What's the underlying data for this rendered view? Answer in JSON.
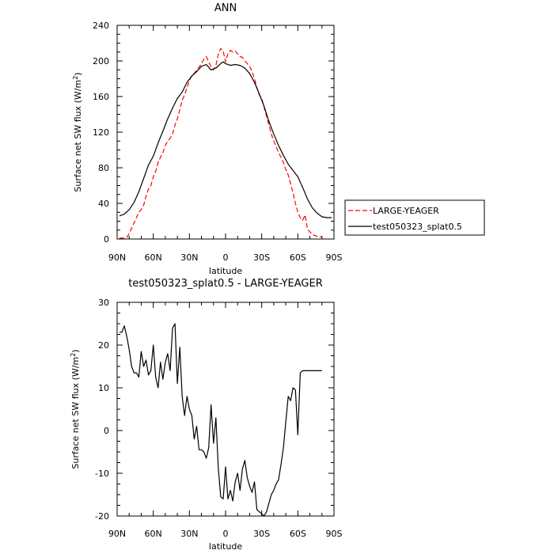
{
  "chart_data": [
    {
      "type": "line",
      "title": "ANN",
      "xlabel": "latitude",
      "ylabel": "Surface net SW flux (W/m",
      "ylabel_sup": "2",
      "ylabel_close": ")",
      "xlim": [
        90,
        -90
      ],
      "ylim": [
        0,
        240
      ],
      "x_ticks": [
        90,
        60,
        30,
        0,
        -30,
        -60,
        -90
      ],
      "x_tick_labels": [
        "90N",
        "60N",
        "30N",
        "0",
        "30S",
        "60S",
        "90S"
      ],
      "y_ticks": [
        0,
        40,
        80,
        120,
        160,
        200,
        240
      ],
      "y_tick_labels": [
        "0",
        "40",
        "80",
        "120",
        "160",
        "200",
        "240"
      ],
      "legend_position": "right",
      "series": [
        {
          "name": "LARGE-YEAGER",
          "color": "#ff0000",
          "style": "dashed",
          "x": [
            88,
            84,
            82,
            80,
            78,
            76,
            74,
            72,
            70,
            68,
            66,
            64,
            62,
            60,
            58,
            56,
            54,
            52,
            50,
            48,
            46,
            44,
            42,
            40,
            38,
            36,
            34,
            32,
            30,
            28,
            26,
            24,
            22,
            20,
            18,
            16,
            14,
            12,
            10,
            8,
            6,
            4,
            2,
            0,
            -2,
            -4,
            -6,
            -8,
            -10,
            -12,
            -14,
            -16,
            -18,
            -20,
            -22,
            -24,
            -26,
            -28,
            -30,
            -32,
            -34,
            -36,
            -38,
            -40,
            -42,
            -44,
            -46,
            -48,
            -50,
            -52,
            -54,
            -56,
            -58,
            -60,
            -62,
            -64,
            -66,
            -68,
            -70,
            -72,
            -74,
            -76,
            -78,
            -80
          ],
          "y": [
            1,
            1,
            2,
            6,
            12,
            18,
            24,
            30,
            33,
            38,
            48,
            56,
            60,
            70,
            76,
            86,
            92,
            97,
            105,
            110,
            113,
            118,
            128,
            135,
            145,
            156,
            162,
            170,
            178,
            184,
            186,
            190,
            193,
            197,
            202,
            205,
            199,
            193,
            190,
            195,
            208,
            214,
            211,
            199,
            208,
            212,
            210,
            211,
            208,
            205,
            204,
            200,
            197,
            194,
            188,
            180,
            170,
            162,
            158,
            148,
            138,
            128,
            118,
            110,
            104,
            97,
            92,
            86,
            78,
            72,
            62,
            52,
            40,
            30,
            24,
            21,
            27,
            11,
            8,
            5,
            4,
            3,
            3,
            2
          ]
        },
        {
          "name": "test050323_splat0.5",
          "color": "#000000",
          "style": "solid",
          "x": [
            88,
            84,
            80,
            76,
            72,
            68,
            64,
            60,
            56,
            52,
            48,
            44,
            40,
            36,
            32,
            28,
            24,
            20,
            16,
            12,
            8,
            4,
            2,
            0,
            -4,
            -8,
            -12,
            -16,
            -20,
            -24,
            -28,
            -32,
            -36,
            -40,
            -44,
            -48,
            -52,
            -56,
            -60,
            -64,
            -68,
            -72,
            -76,
            -80,
            -84,
            -88
          ],
          "y": [
            26,
            28,
            33,
            41,
            53,
            68,
            83,
            93,
            108,
            121,
            135,
            147,
            158,
            165,
            176,
            183,
            188,
            194,
            196,
            190,
            192,
            197,
            199,
            197,
            195,
            196,
            195,
            192,
            186,
            176,
            163,
            149,
            132,
            118,
            105,
            94,
            84,
            77,
            70,
            58,
            45,
            35,
            29,
            25,
            24,
            24
          ]
        }
      ]
    },
    {
      "type": "line",
      "title": "test050323_splat0.5 - LARGE-YEAGER",
      "xlabel": "latitude",
      "ylabel": "Surface net SW flux (W/m",
      "ylabel_sup": "2",
      "ylabel_close": ")",
      "xlim": [
        90,
        -90
      ],
      "ylim": [
        -20,
        30
      ],
      "x_ticks": [
        90,
        60,
        30,
        0,
        -30,
        -60,
        -90
      ],
      "x_tick_labels": [
        "90N",
        "60N",
        "30N",
        "0",
        "30S",
        "60S",
        "90S"
      ],
      "y_ticks": [
        -20,
        -10,
        0,
        10,
        20,
        30
      ],
      "y_tick_labels": [
        "-20",
        "-10",
        "0",
        "10",
        "20",
        "30"
      ],
      "series": [
        {
          "color": "#000000",
          "style": "solid",
          "x": [
            88,
            86,
            84,
            82,
            80,
            78,
            76,
            74,
            72,
            70,
            68,
            66,
            64,
            62,
            60,
            58,
            56,
            54,
            52,
            50,
            48,
            46,
            44,
            42,
            40,
            38,
            36,
            34,
            32,
            30,
            28,
            26,
            24,
            22,
            20,
            18,
            16,
            14,
            12,
            10,
            8,
            6,
            4,
            2,
            0,
            -2,
            -4,
            -6,
            -8,
            -10,
            -12,
            -14,
            -16,
            -18,
            -20,
            -22,
            -24,
            -26,
            -28,
            -30,
            -32,
            -34,
            -36,
            -38,
            -40,
            -42,
            -44,
            -46,
            -48,
            -50,
            -52,
            -54,
            -56,
            -58,
            -60,
            -62,
            -64,
            -66,
            -68,
            -70,
            -72,
            -74,
            -76,
            -78,
            -80
          ],
          "y": [
            23,
            23,
            24.5,
            22,
            19,
            15,
            13.5,
            13.5,
            12.5,
            18.5,
            15,
            16.5,
            13,
            14,
            20,
            12.5,
            10,
            16,
            12,
            16,
            18,
            14,
            24,
            25,
            11,
            19.5,
            8,
            3.5,
            8,
            5,
            3.5,
            -2,
            1,
            -4.5,
            -4.5,
            -5,
            -6.5,
            -4,
            6,
            -3,
            3,
            -9,
            -15.5,
            -16,
            -8.5,
            -16,
            -14,
            -16.5,
            -12,
            -10,
            -14,
            -9,
            -7,
            -11,
            -13,
            -14.5,
            -12,
            -18.5,
            -19,
            -19.5,
            -20,
            -19,
            -17,
            -15,
            -14,
            -12.5,
            -11.5,
            -8,
            -4,
            2,
            8,
            7,
            10,
            9.5,
            -1,
            13.5,
            14,
            14,
            14,
            14,
            14,
            14,
            14,
            14,
            14
          ]
        }
      ]
    }
  ]
}
